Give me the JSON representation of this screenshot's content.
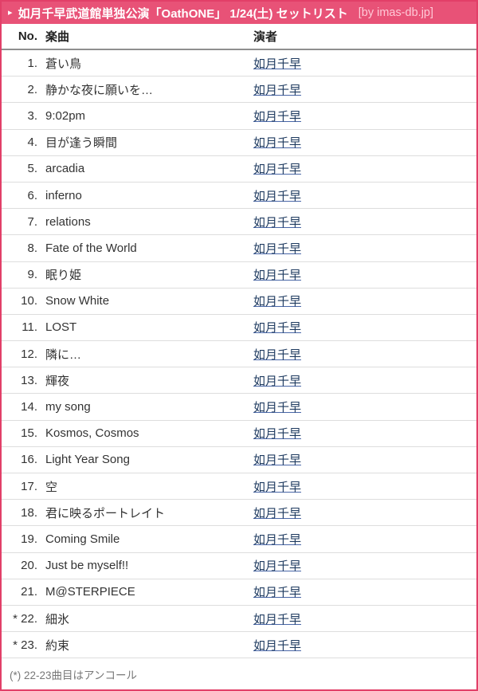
{
  "colors": {
    "accent_pink": "#e85277",
    "border_pink": "#e23f68",
    "link": "#1e3a5f",
    "muted_gray": "#777777"
  },
  "titlebar": {
    "arrow_icon": "▸",
    "title": "如月千早武道館単独公演「OathONE」 1/24(土) セットリスト",
    "byline": "[by imas-db.jp]"
  },
  "table": {
    "headers": {
      "no": "No.",
      "song": "楽曲",
      "performer": "演者"
    },
    "rows": [
      {
        "no": "1.",
        "song": "蒼い鳥",
        "performer": "如月千早"
      },
      {
        "no": "2.",
        "song": "静かな夜に願いを…",
        "performer": "如月千早"
      },
      {
        "no": "3.",
        "song": "9:02pm",
        "performer": "如月千早"
      },
      {
        "no": "4.",
        "song": "目が逢う瞬間",
        "performer": "如月千早"
      },
      {
        "no": "5.",
        "song": "arcadia",
        "performer": "如月千早"
      },
      {
        "no": "6.",
        "song": "inferno",
        "performer": "如月千早"
      },
      {
        "no": "7.",
        "song": "relations",
        "performer": "如月千早"
      },
      {
        "no": "8.",
        "song": "Fate of the World",
        "performer": "如月千早"
      },
      {
        "no": "9.",
        "song": "眠り姫",
        "performer": "如月千早"
      },
      {
        "no": "10.",
        "song": "Snow White",
        "performer": "如月千早"
      },
      {
        "no": "11.",
        "song": "LOST",
        "performer": "如月千早"
      },
      {
        "no": "12.",
        "song": "隣に…",
        "performer": "如月千早"
      },
      {
        "no": "13.",
        "song": "輝夜",
        "performer": "如月千早"
      },
      {
        "no": "14.",
        "song": "my song",
        "performer": "如月千早"
      },
      {
        "no": "15.",
        "song": "Kosmos, Cosmos",
        "performer": "如月千早"
      },
      {
        "no": "16.",
        "song": "Light Year Song",
        "performer": "如月千早"
      },
      {
        "no": "17.",
        "song": "空",
        "performer": "如月千早"
      },
      {
        "no": "18.",
        "song": "君に映るポートレイト",
        "performer": "如月千早"
      },
      {
        "no": "19.",
        "song": "Coming Smile",
        "performer": "如月千早"
      },
      {
        "no": "20.",
        "song": "Just be myself!!",
        "performer": "如月千早"
      },
      {
        "no": "21.",
        "song": "M@STERPIECE",
        "performer": "如月千早"
      },
      {
        "no": "* 22.",
        "song": "細氷",
        "performer": "如月千早"
      },
      {
        "no": "* 23.",
        "song": "約束",
        "performer": "如月千早"
      }
    ]
  },
  "footer": {
    "note": "(*) 22-23曲目はアンコール"
  }
}
